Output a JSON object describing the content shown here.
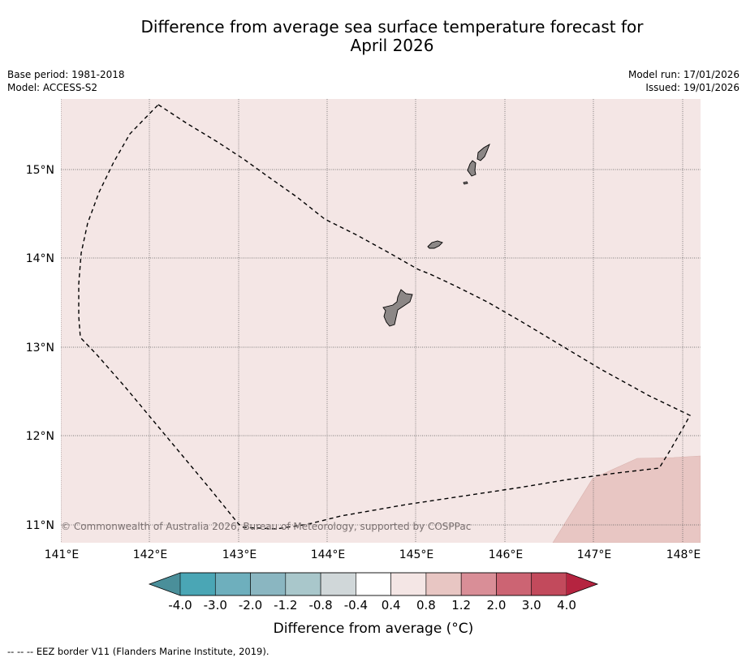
{
  "title_line1": "Difference from average sea surface temperature forecast for",
  "title_line2": "April 2026",
  "base_period": "Base period: 1981-2018",
  "model": "Model: ACCESS-S2",
  "model_run": "Model run: 17/01/2026",
  "issued": "Issued: 19/01/2026",
  "credit": "© Commonwealth of Australia 2026, Bureau of Meteorology, supported by COSPPac",
  "footnote": "-- -- -- EEZ border V11 (Flanders Marine Institute, 2019).",
  "lon_ticks": [
    "141°E",
    "142°E",
    "143°E",
    "144°E",
    "145°E",
    "146°E",
    "147°E",
    "148°E"
  ],
  "lat_ticks": [
    "15°N",
    "14°N",
    "13°N",
    "12°N",
    "11°N"
  ],
  "colorbar": {
    "label": "Difference from average (°C)",
    "ticks": [
      "-4.0",
      "-3.0",
      "-2.0",
      "-1.2",
      "-0.8",
      "-0.4",
      "0.4",
      "0.8",
      "1.2",
      "2.0",
      "3.0",
      "4.0"
    ],
    "colors": [
      "#4a8f9a",
      "#4aa6b5",
      "#6eafbd",
      "#8ab6c1",
      "#a9c7cb",
      "#d0d7d9",
      "#ffffff",
      "#f4e6e5",
      "#e8c6c3",
      "#d98e97",
      "#cc6473",
      "#c24a5c",
      "#b52440"
    ]
  },
  "map_colors": {
    "background": "#f4e6e5",
    "warm_patch": "#e8c6c3",
    "land": "#8c8786"
  }
}
